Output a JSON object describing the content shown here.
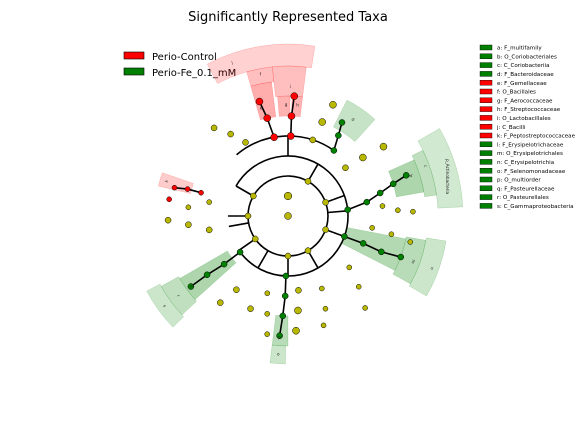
{
  "title": "Significantly Represented Taxa",
  "legend": [
    {
      "label": "Perio-Control",
      "color": "#ff0000"
    },
    {
      "label": "Perio-Fe_0.1_mM",
      "color": "#008000"
    }
  ],
  "colors": {
    "neutral": "#b8b800",
    "control": "#ff0000",
    "fe": "#008000",
    "control_shade": "#ff0000",
    "fe_shade": "#008000"
  },
  "key": [
    {
      "text": "a: F_multifamily",
      "group": "fe"
    },
    {
      "text": "b: O_Coriobacteriales",
      "group": "fe"
    },
    {
      "text": "c: C_Coriobacteriia",
      "group": "fe"
    },
    {
      "text": "d: F_Bacteroidaceae",
      "group": "fe"
    },
    {
      "text": "e: F_Gemellaceae",
      "group": "control"
    },
    {
      "text": "f: O_Bacillales",
      "group": "control"
    },
    {
      "text": "g: F_Aerococcaceae",
      "group": "control"
    },
    {
      "text": "h: F_Streptococcaceae",
      "group": "control"
    },
    {
      "text": "i: O_Lactobacillales",
      "group": "control"
    },
    {
      "text": "j: C_Bacilli",
      "group": "control"
    },
    {
      "text": "k: F_Peptostreptococcaceae",
      "group": "control"
    },
    {
      "text": "l: F_Erysipelotrichaceae",
      "group": "fe"
    },
    {
      "text": "m: O_Erysipelotrichales",
      "group": "fe"
    },
    {
      "text": "n: C_Erysipelotrichia",
      "group": "fe"
    },
    {
      "text": "o: F_Selenomonadaceae",
      "group": "fe"
    },
    {
      "text": "p: O_multiorder",
      "group": "fe"
    },
    {
      "text": "q: F_Pasteurellaceae",
      "group": "fe"
    },
    {
      "text": "r: O_Pasteurellales",
      "group": "fe"
    },
    {
      "text": "s: C_Gammaproteobacteria",
      "group": "fe"
    }
  ],
  "sector_labels": {
    "actinobacteria": "p_Actinobacteria",
    "coriobacteriales_b": "b",
    "coriobacteriia_c": "c",
    "bacilli_j": "j",
    "bacillales_f": "f",
    "lacto_i": "i",
    "gem_e": "e",
    "aero_g": "g",
    "strep_h": "h",
    "pepto_k": "k",
    "bact_d": "d",
    "multi_a": "a",
    "erys_n": "n",
    "erys_m": "m",
    "erys_l": "l",
    "seleno_o": "o",
    "multi_p": "p",
    "gamma_s": "s",
    "pasteur_r": "r",
    "pasteur_q": "q"
  }
}
